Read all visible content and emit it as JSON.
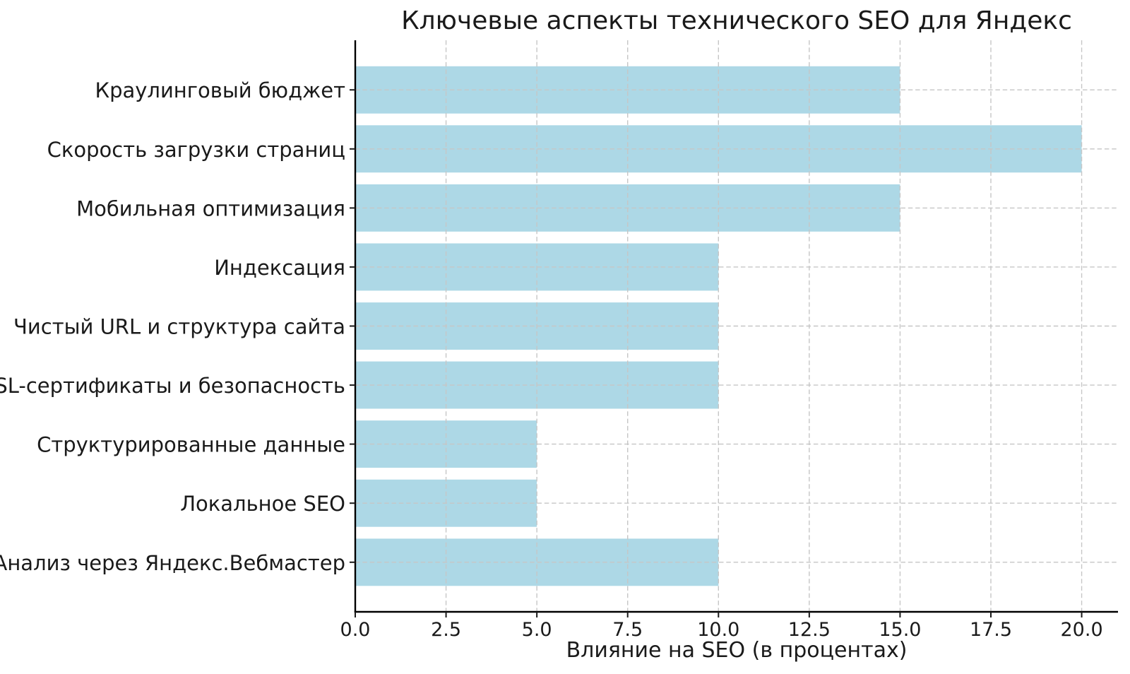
{
  "chart_data": {
    "type": "bar",
    "orientation": "horizontal",
    "title": "Ключевые аспекты технического SEO для Яндекс",
    "xlabel": "Влияние на SEO (в процентах)",
    "ylabel": "",
    "categories": [
      "Краулинговый бюджет",
      "Скорость загрузки страниц",
      "Мобильная оптимизация",
      "Индексация",
      "Чистый URL и структура сайта",
      "SSL-сертификаты и безопасность",
      "Структурированные данные",
      "Локальное SEO",
      "Анализ через Яндекс.Вебмастер"
    ],
    "values": [
      15,
      20,
      15,
      10,
      10,
      10,
      5,
      5,
      10
    ],
    "xlim": [
      0,
      21
    ],
    "xticks": [
      0,
      2.5,
      5,
      7.5,
      10,
      12.5,
      15,
      17.5,
      20
    ],
    "xtick_labels": [
      "0.0",
      "2.5",
      "5.0",
      "7.5",
      "10.0",
      "12.5",
      "15.0",
      "17.5",
      "20.0"
    ],
    "bar_color": "#ADD8E6",
    "bar_height_fraction": 0.8,
    "grid": true,
    "grid_style": "dashed",
    "grid_color": "#c6c6c6",
    "axis_color": "#000000",
    "text_color": "#1a1a1a",
    "background": "#ffffff",
    "legend": "none"
  }
}
